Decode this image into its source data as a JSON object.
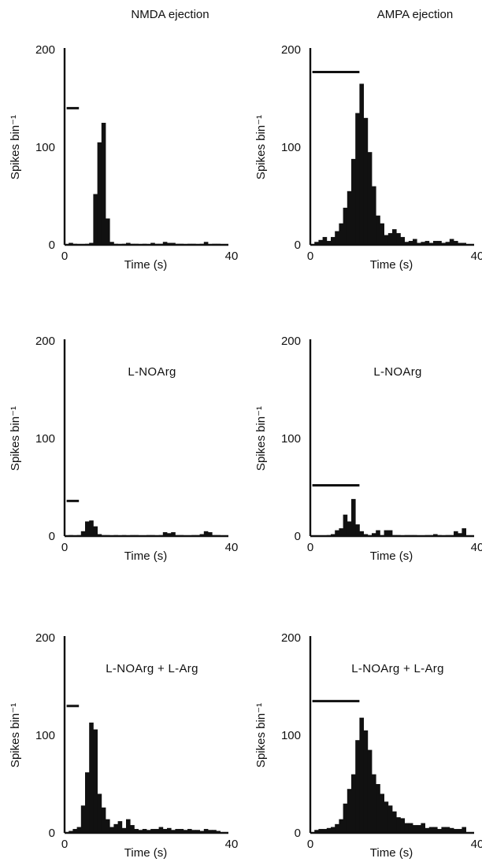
{
  "column_titles": [
    "NMDA ejection",
    "AMPA ejection"
  ],
  "chart_data": [
    {
      "id": "nmda-control",
      "type": "bar",
      "column": 0,
      "row": 0,
      "condition_label": "",
      "xlabel": "Time (s)",
      "ylabel": "Spikes bin⁻¹",
      "xlim": [
        0,
        40
      ],
      "ylim": [
        0,
        200
      ],
      "xticks": [
        "0",
        "40"
      ],
      "yticks": [
        "0",
        "100",
        "200"
      ],
      "ejection_bar": {
        "start": 0.5,
        "end": 3.5,
        "level": 140
      },
      "bin_width": 1,
      "values": [
        0,
        2,
        1,
        0,
        0,
        1,
        2,
        52,
        105,
        125,
        27,
        3,
        1,
        0,
        1,
        2,
        1,
        1,
        0,
        1,
        0,
        2,
        1,
        1,
        3,
        2,
        2,
        1,
        1,
        0,
        1,
        1,
        0,
        1,
        3,
        0,
        1,
        1,
        0,
        0
      ]
    },
    {
      "id": "ampa-control",
      "type": "bar",
      "column": 1,
      "row": 0,
      "condition_label": "",
      "xlabel": "Time (s)",
      "ylabel": "Spikes bin⁻¹",
      "xlim": [
        0,
        40
      ],
      "ylim": [
        0,
        200
      ],
      "xticks": [
        "0",
        "40"
      ],
      "yticks": [
        "0",
        "100",
        "200"
      ],
      "ejection_bar": {
        "start": 0.5,
        "end": 12,
        "level": 177
      },
      "bin_width": 1,
      "values": [
        0,
        3,
        5,
        8,
        4,
        8,
        14,
        22,
        38,
        55,
        88,
        135,
        165,
        130,
        95,
        60,
        30,
        22,
        10,
        12,
        16,
        12,
        8,
        3,
        4,
        6,
        2,
        3,
        4,
        2,
        4,
        4,
        2,
        3,
        6,
        4,
        2,
        2,
        0,
        0
      ]
    },
    {
      "id": "nmda-lnoarg",
      "type": "bar",
      "column": 0,
      "row": 1,
      "condition_label": "L-NOArg",
      "xlabel": "Time (s)",
      "ylabel": "Spikes bin⁻¹",
      "xlim": [
        0,
        40
      ],
      "ylim": [
        0,
        200
      ],
      "xticks": [
        "0",
        "40"
      ],
      "yticks": [
        "0",
        "100",
        "200"
      ],
      "ejection_bar": {
        "start": 0.5,
        "end": 3.5,
        "level": 36
      },
      "bin_width": 1,
      "values": [
        0,
        1,
        0,
        1,
        5,
        15,
        16,
        10,
        2,
        1,
        1,
        0,
        1,
        0,
        1,
        0,
        1,
        1,
        0,
        0,
        1,
        1,
        0,
        1,
        4,
        3,
        4,
        1,
        1,
        0,
        0,
        1,
        1,
        2,
        5,
        4,
        1,
        1,
        0,
        0
      ]
    },
    {
      "id": "ampa-lnoarg",
      "type": "bar",
      "column": 1,
      "row": 1,
      "condition_label": "L-NOArg",
      "xlabel": "Time (s)",
      "ylabel": "Spikes bin⁻¹",
      "xlim": [
        0,
        40
      ],
      "ylim": [
        0,
        200
      ],
      "xticks": [
        "0",
        "40"
      ],
      "yticks": [
        "0",
        "100",
        "200"
      ],
      "ejection_bar": {
        "start": 0.5,
        "end": 12,
        "level": 52
      },
      "bin_width": 1,
      "values": [
        0,
        0,
        0,
        0,
        1,
        2,
        6,
        8,
        22,
        15,
        38,
        12,
        5,
        2,
        1,
        3,
        6,
        1,
        6,
        6,
        1,
        1,
        0,
        1,
        1,
        1,
        0,
        0,
        1,
        1,
        2,
        1,
        0,
        1,
        1,
        5,
        3,
        8,
        0,
        0
      ]
    },
    {
      "id": "nmda-lnoarg-larg",
      "type": "bar",
      "column": 0,
      "row": 2,
      "condition_label": "L-NOArg + L-Arg",
      "xlabel": "Time (s)",
      "ylabel": "Spikes bin⁻¹",
      "xlim": [
        0,
        40
      ],
      "ylim": [
        0,
        200
      ],
      "xticks": [
        "0",
        "40"
      ],
      "yticks": [
        "0",
        "100",
        "200"
      ],
      "ejection_bar": {
        "start": 0.5,
        "end": 3.5,
        "level": 130
      },
      "bin_width": 1,
      "values": [
        0,
        2,
        4,
        6,
        28,
        62,
        113,
        106,
        40,
        26,
        14,
        6,
        9,
        12,
        5,
        14,
        8,
        4,
        3,
        4,
        3,
        4,
        4,
        6,
        4,
        5,
        3,
        4,
        4,
        3,
        4,
        3,
        3,
        2,
        4,
        3,
        3,
        2,
        0,
        0
      ]
    },
    {
      "id": "ampa-lnoarg-larg",
      "type": "bar",
      "column": 1,
      "row": 2,
      "condition_label": "L-NOArg + L-Arg",
      "xlabel": "Time (s)",
      "ylabel": "Spikes bin⁻¹",
      "xlim": [
        0,
        40
      ],
      "ylim": [
        0,
        200
      ],
      "xticks": [
        "0",
        "40"
      ],
      "yticks": [
        "0",
        "100",
        "200"
      ],
      "ejection_bar": {
        "start": 0.5,
        "end": 12,
        "level": 135
      },
      "bin_width": 1,
      "values": [
        0,
        3,
        4,
        4,
        5,
        6,
        9,
        14,
        30,
        45,
        60,
        95,
        118,
        105,
        85,
        60,
        50,
        40,
        32,
        28,
        22,
        16,
        15,
        10,
        10,
        8,
        8,
        10,
        5,
        6,
        6,
        4,
        6,
        6,
        5,
        4,
        4,
        6,
        0,
        0
      ]
    }
  ]
}
